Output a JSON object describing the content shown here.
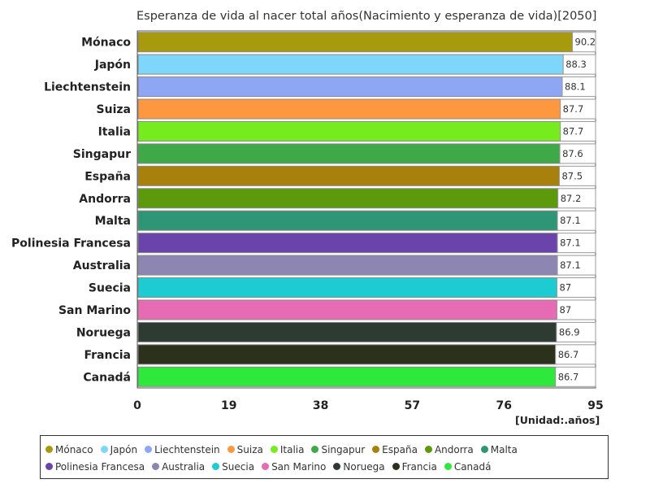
{
  "chart_data": {
    "type": "bar",
    "orientation": "horizontal",
    "title": "Esperanza de vida al nacer total años(Nacimiento y esperanza de vida)[2050]",
    "unit_label": "[Unidad:.años]",
    "categories": [
      "Mónaco",
      "Japón",
      "Liechtenstein",
      "Suiza",
      "Italia",
      "Singapur",
      "España",
      "Andorra",
      "Malta",
      "Polinesia Francesa",
      "Australia",
      "Suecia",
      "San Marino",
      "Noruega",
      "Francia",
      "Canadá"
    ],
    "values": [
      90.2,
      88.3,
      88.1,
      87.7,
      87.7,
      87.6,
      87.5,
      87.2,
      87.1,
      87.1,
      87.1,
      87,
      87,
      86.9,
      86.7,
      86.7
    ],
    "value_labels": [
      "90.2",
      "88.3",
      "88.1",
      "87.7",
      "87.7",
      "87.6",
      "87.5",
      "87.2",
      "87.1",
      "87.1",
      "87.1",
      "87",
      "87",
      "86.9",
      "86.7",
      "86.7"
    ],
    "colors": [
      "#a89a0e",
      "#7fd6fb",
      "#8ea6f4",
      "#fd9841",
      "#76ec1e",
      "#3fa947",
      "#a7810b",
      "#5d9a0b",
      "#2e9575",
      "#6a44aa",
      "#8e86b2",
      "#1dcbd2",
      "#e66bb4",
      "#2e3b33",
      "#2b311b",
      "#2ee83b"
    ],
    "x_ticks": [
      "0",
      "19",
      "38",
      "57",
      "76",
      "95"
    ],
    "xlim": [
      0,
      95
    ],
    "grid": false,
    "legend": "bottom"
  }
}
